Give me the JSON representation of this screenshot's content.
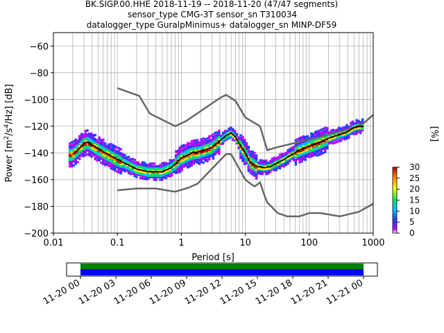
{
  "chart_data": {
    "type": "heatmap",
    "title_lines": [
      "BK.SIGP.00.HHE   2018-11-19 -- 2018-11-20  (47/47 segments)",
      "sensor_type CMG-3T sensor_sn T310034",
      "datalogger_type GuralpMinimus+ datalogger_sn MINP-DF59"
    ],
    "xlabel": "Period [s]",
    "ylabel": "Power [m²/s⁴/Hz] [dB]",
    "x_scale": "log",
    "xlim": [
      0.01,
      1000
    ],
    "ylim": [
      -200,
      -50
    ],
    "x_ticks": [
      {
        "value": 0.01,
        "label": "0.01"
      },
      {
        "value": 0.1,
        "label": "0.1"
      },
      {
        "value": 1,
        "label": "1"
      },
      {
        "value": 10,
        "label": "10"
      },
      {
        "value": 100,
        "label": "100"
      },
      {
        "value": 1000,
        "label": "1000"
      }
    ],
    "y_ticks": [
      {
        "value": -60,
        "label": "−60"
      },
      {
        "value": -80,
        "label": "−80"
      },
      {
        "value": -100,
        "label": "−100"
      },
      {
        "value": -120,
        "label": "−120"
      },
      {
        "value": -140,
        "label": "−140"
      },
      {
        "value": -160,
        "label": "−160"
      },
      {
        "value": -180,
        "label": "−180"
      },
      {
        "value": -200,
        "label": "−200"
      }
    ],
    "grid": true,
    "colorbar": {
      "label": "[%]",
      "range": [
        0,
        30
      ],
      "ticks": [
        {
          "value": 0,
          "label": "0"
        },
        {
          "value": 5,
          "label": "5"
        },
        {
          "value": 10,
          "label": "10"
        },
        {
          "value": 15,
          "label": "15"
        },
        {
          "value": 20,
          "label": "20"
        },
        {
          "value": 25,
          "label": "25"
        },
        {
          "value": 30,
          "label": "30"
        }
      ],
      "colors": [
        "#ffffff",
        "#c000ff",
        "#2040ff",
        "#00c0ff",
        "#00e060",
        "#ffff00",
        "#ff8000",
        "#b00000"
      ]
    },
    "median_curve": [
      [
        0.02,
        -141
      ],
      [
        0.025,
        -137
      ],
      [
        0.03,
        -133
      ],
      [
        0.035,
        -132
      ],
      [
        0.04,
        -134
      ],
      [
        0.05,
        -137
      ],
      [
        0.07,
        -141
      ],
      [
        0.1,
        -145
      ],
      [
        0.15,
        -149
      ],
      [
        0.2,
        -152
      ],
      [
        0.3,
        -154
      ],
      [
        0.5,
        -154
      ],
      [
        0.7,
        -151
      ],
      [
        1,
        -144
      ],
      [
        1.5,
        -140
      ],
      [
        2,
        -139
      ],
      [
        3,
        -136
      ],
      [
        4,
        -131
      ],
      [
        5,
        -127
      ],
      [
        6,
        -125
      ],
      [
        7,
        -128
      ],
      [
        8,
        -133
      ],
      [
        10,
        -140
      ],
      [
        12,
        -147
      ],
      [
        15,
        -150
      ],
      [
        20,
        -151
      ],
      [
        25,
        -150
      ],
      [
        30,
        -148
      ],
      [
        40,
        -145
      ],
      [
        50,
        -142
      ],
      [
        70,
        -138
      ],
      [
        100,
        -135
      ],
      [
        150,
        -132
      ],
      [
        200,
        -129
      ],
      [
        300,
        -126
      ],
      [
        400,
        -124
      ],
      [
        500,
        -121
      ],
      [
        600,
        -120
      ],
      [
        700,
        -120
      ]
    ],
    "nhnm": [
      [
        0.1,
        -168
      ],
      [
        0.2,
        -166.7
      ],
      [
        0.4,
        -166.7
      ],
      [
        0.8,
        -169
      ],
      [
        1.3,
        -166
      ],
      [
        1.8,
        -163
      ],
      [
        3.6,
        -148
      ],
      [
        5,
        -141
      ],
      [
        6,
        -141
      ],
      [
        10,
        -160
      ],
      [
        12,
        -163
      ],
      [
        14,
        -165
      ],
      [
        16,
        -163
      ],
      [
        17,
        -162
      ],
      [
        20,
        -172
      ],
      [
        22,
        -177
      ],
      [
        32,
        -185
      ],
      [
        45,
        -187.5
      ],
      [
        70,
        -187.5
      ],
      [
        100,
        -185
      ],
      [
        150,
        -185
      ],
      [
        300,
        -187.5
      ],
      [
        600,
        -184
      ],
      [
        1000,
        -178
      ]
    ],
    "nlnm": [
      [
        0.1,
        -91.5
      ],
      [
        0.22,
        -97.4
      ],
      [
        0.32,
        -110.5
      ],
      [
        0.8,
        -120
      ],
      [
        1.2,
        -116
      ],
      [
        4,
        -99
      ],
      [
        5,
        -96.5
      ],
      [
        7,
        -101
      ],
      [
        10,
        -113.5
      ],
      [
        17,
        -120
      ],
      [
        22,
        -138
      ],
      [
        30,
        -136
      ],
      [
        100,
        -130
      ],
      [
        150,
        -128
      ],
      [
        300,
        -124
      ],
      [
        500,
        -121
      ],
      [
        700,
        -118
      ],
      [
        1000,
        -111.5
      ]
    ]
  },
  "timeline": {
    "tick_labels": [
      "11-20 00",
      "11-20 03",
      "11-20 06",
      "11-20 09",
      "11-20 12",
      "11-20 15",
      "11-20 18",
      "11-20 21",
      "11-21 00"
    ],
    "coverage_color": "#0000ff",
    "data_color": "#008000"
  }
}
